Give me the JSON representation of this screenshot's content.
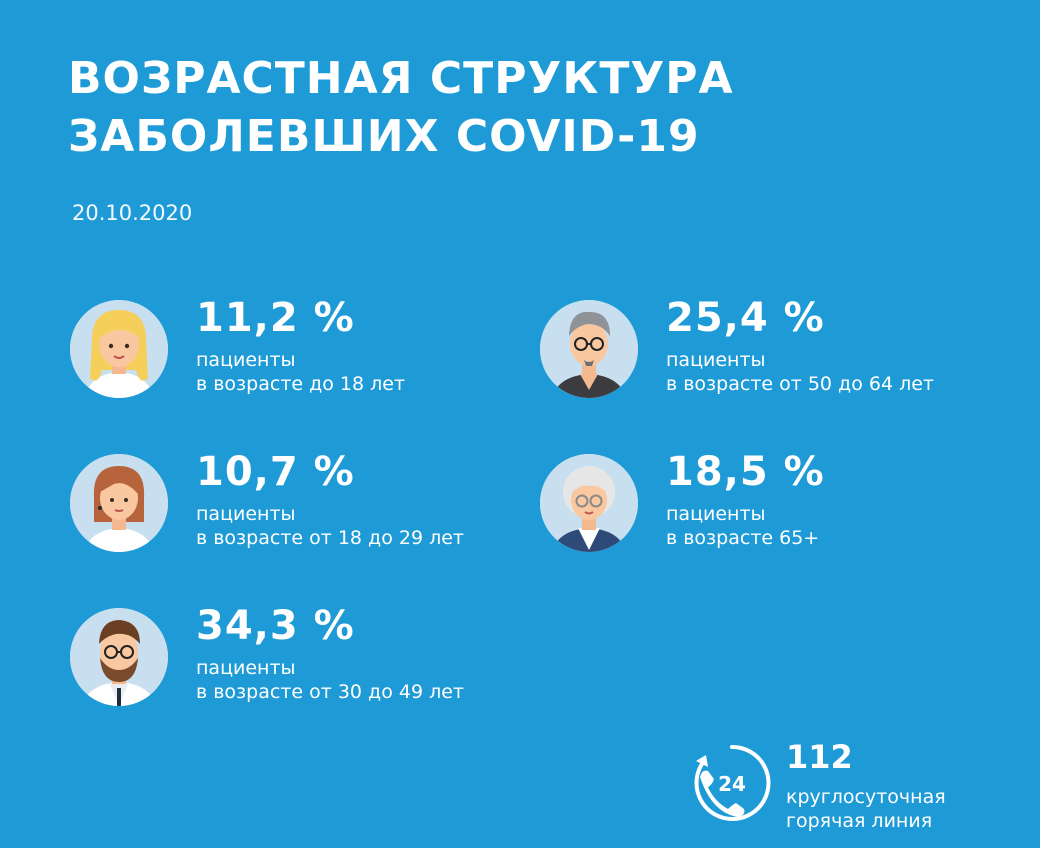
{
  "title": {
    "line1": "ВОЗРАСТНАЯ СТРУКТУРА",
    "line2": "ЗАБОЛЕВШИХ COVID-19"
  },
  "date": "20.10.2020",
  "stats": [
    {
      "percent": "11,2 %",
      "line1": "пациенты",
      "line2": "в возрасте до 18 лет",
      "avatar": "girl-avatar-icon"
    },
    {
      "percent": "10,7 %",
      "line1": "пациенты",
      "line2": "в возрасте от 18 до 29 лет",
      "avatar": "young-woman-avatar-icon"
    },
    {
      "percent": "34,3 %",
      "line1": "пациенты",
      "line2": "в возрасте от 30 до 49 лет",
      "avatar": "bearded-man-avatar-icon"
    },
    {
      "percent": "25,4 %",
      "line1": "пациенты",
      "line2": "в возрасте от 50 до 64 лет",
      "avatar": "middle-aged-man-avatar-icon"
    },
    {
      "percent": "18,5 %",
      "line1": "пациенты",
      "line2": "в возрасте 65+",
      "avatar": "elderly-woman-avatar-icon"
    }
  ],
  "hotline": {
    "icon_text": "24",
    "number": "112",
    "line1": "круглосуточная",
    "line2": "горячая линия"
  },
  "colors": {
    "background": "#1e9bd7",
    "text": "#ffffff",
    "avatar_bg": "#c8dff0"
  }
}
